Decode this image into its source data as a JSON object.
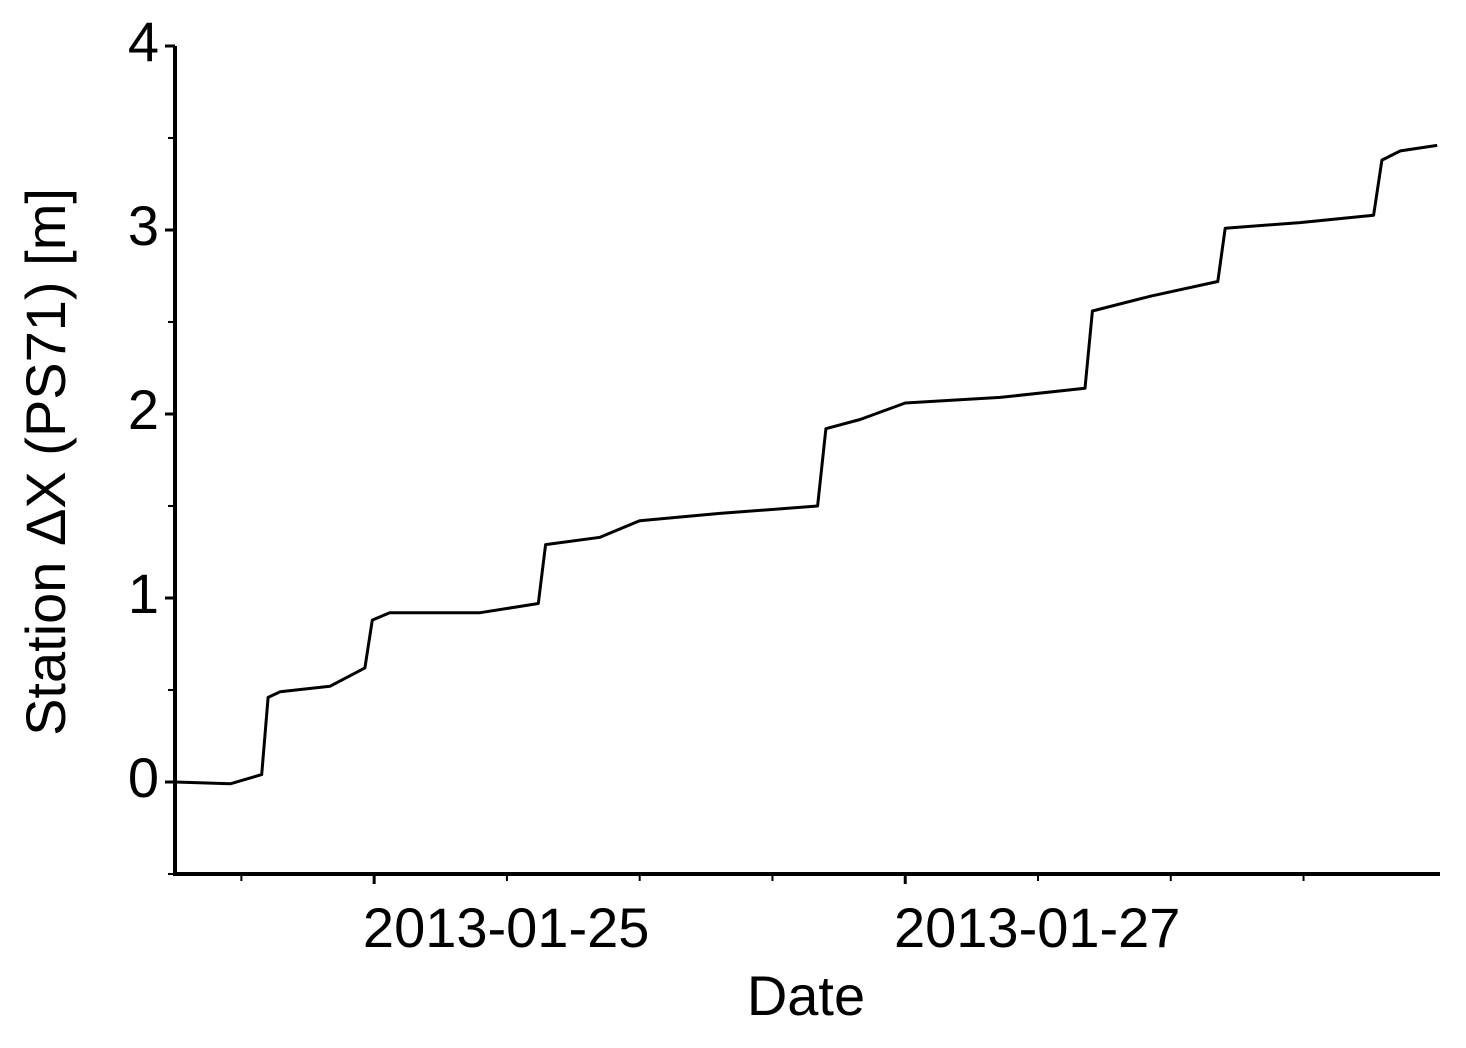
{
  "chart_data": {
    "type": "line",
    "xlabel": "Date",
    "ylabel": "Station ΔX (PS71) [m]",
    "x": [
      "2013-01-24T06:00",
      "2013-01-24T11:00",
      "2013-01-24T13:50",
      "2013-01-24T14:25",
      "2013-01-24T15:30",
      "2013-01-24T20:00",
      "2013-01-24T23:10",
      "2013-01-24T23:50",
      "2013-01-25T01:25",
      "2013-01-25T09:35",
      "2013-01-25T14:50",
      "2013-01-25T15:30",
      "2013-01-25T20:25",
      "2013-01-26T00:00",
      "2013-01-26T07:15",
      "2013-01-26T16:05",
      "2013-01-26T16:50",
      "2013-01-26T19:55",
      "2013-01-27T00:00",
      "2013-01-27T08:35",
      "2013-01-27T16:15",
      "2013-01-27T16:55",
      "2013-01-27T22:10",
      "2013-01-28T04:15",
      "2013-01-28T04:55",
      "2013-01-28T11:40",
      "2013-01-28T18:20",
      "2013-01-28T19:05",
      "2013-01-28T20:45",
      "2013-01-29T00:05"
    ],
    "series": [
      {
        "color": "#000000",
        "values": [
          0.0,
          -0.01,
          0.04,
          0.46,
          0.49,
          0.52,
          0.62,
          0.88,
          0.92,
          0.92,
          0.97,
          1.29,
          1.33,
          1.42,
          1.46,
          1.5,
          1.92,
          1.97,
          2.06,
          2.09,
          2.14,
          2.56,
          2.64,
          2.72,
          3.01,
          3.04,
          3.08,
          3.38,
          3.43,
          3.46
        ]
      }
    ],
    "xlim": [
      "2013-01-24T06:00",
      "2013-01-29T00:20"
    ],
    "xticks": [
      {
        "value": "2013-01-25T00:00",
        "label": "2013-01-25"
      },
      {
        "value": "2013-01-27T00:00",
        "label": "2013-01-27"
      }
    ],
    "xminorticks": [
      "2013-01-24T12:00",
      "2013-01-25T12:00",
      "2013-01-26T00:00",
      "2013-01-26T12:00",
      "2013-01-27T12:00",
      "2013-01-28T00:00",
      "2013-01-28T12:00"
    ],
    "ylim": [
      -0.5,
      4
    ],
    "yticks": [
      0,
      1,
      2,
      3,
      4
    ],
    "yminorticks": [
      -0.5,
      0.5,
      1.5,
      2.5,
      3.5
    ],
    "grid": false
  }
}
